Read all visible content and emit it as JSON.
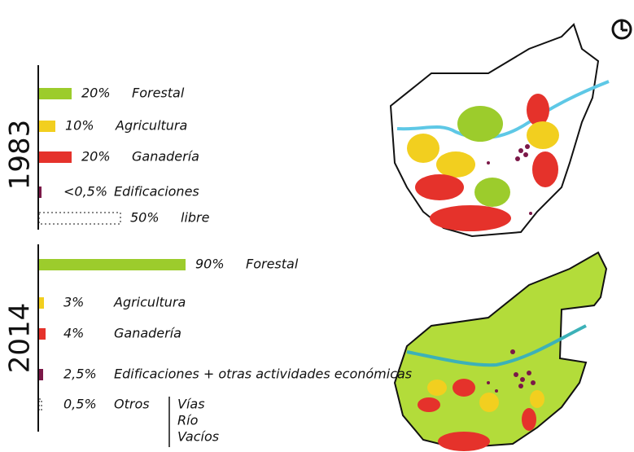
{
  "chart_data": [
    {
      "type": "bar",
      "orientation": "horizontal",
      "title": "1983",
      "categories": [
        "Forestal",
        "Agricultura",
        "Ganadería",
        "Edificaciones",
        "libre"
      ],
      "values": [
        20,
        10,
        20,
        0.5,
        50
      ],
      "value_labels": [
        "20%",
        "10%",
        "20%",
        "<0,5%",
        "50%"
      ],
      "colors": [
        "#9ccc2c",
        "#f2cf1f",
        "#e5322b",
        "#7b1848",
        "#ffffff"
      ]
    },
    {
      "type": "bar",
      "orientation": "horizontal",
      "title": "2014",
      "categories": [
        "Forestal",
        "Agricultura",
        "Ganadería",
        "Edificaciones + otras actividades económicas",
        "Otros"
      ],
      "values": [
        90,
        3,
        4,
        2.5,
        0.5
      ],
      "value_labels": [
        "90%",
        "3%",
        "4%",
        "2,5%",
        "0,5%"
      ],
      "colors": [
        "#9ccc2c",
        "#f2cf1f",
        "#e5322b",
        "#7b1848",
        "#ffffff"
      ],
      "annotations": [
        "Vías",
        "Río",
        "Vacíos"
      ]
    }
  ]
}
